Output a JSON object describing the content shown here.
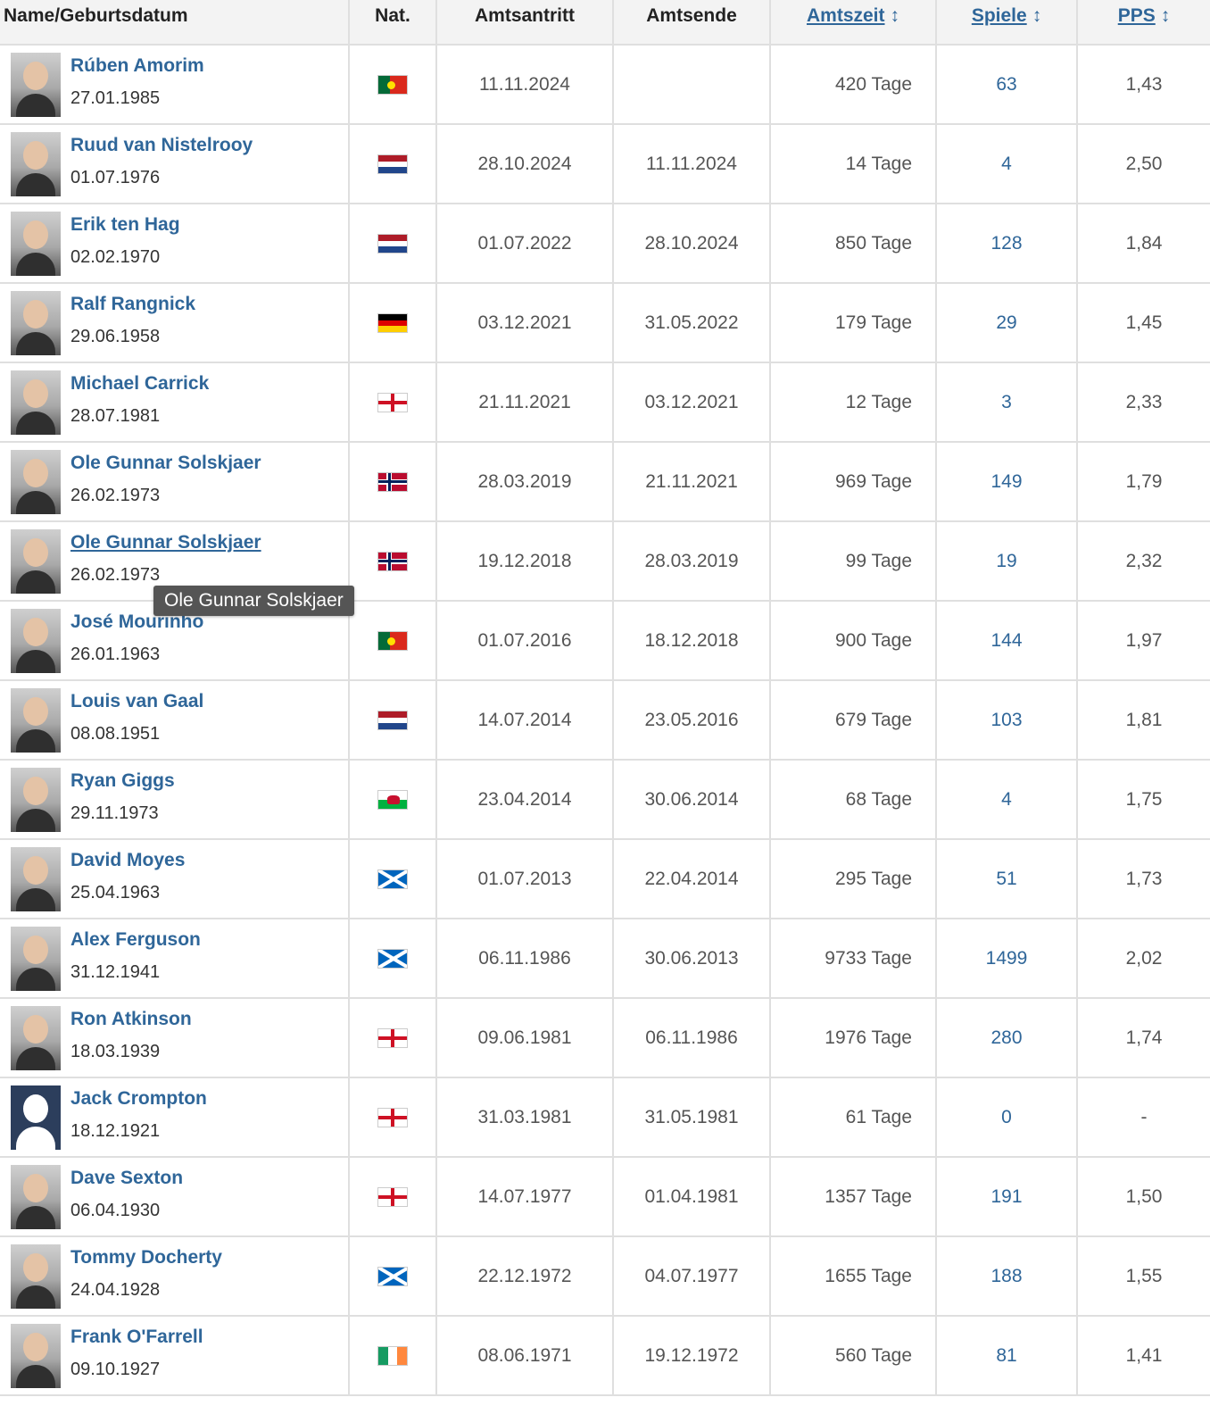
{
  "header": {
    "col_name": "Name/Geburtsdatum",
    "col_nat": "Nat.",
    "col_start": "Amtsantritt",
    "col_end": "Amtsende",
    "col_tenure": "Amtszeit",
    "col_matches": "Spiele",
    "col_pps": "PPS",
    "sort_icon": "↕"
  },
  "tooltip": "Ole Gunnar Solskjaer",
  "rows": [
    {
      "name": "Rúben Amorim",
      "dob": "27.01.1985",
      "nat": "portugal",
      "start": "11.11.2024",
      "end": "",
      "tenure": "420 Tage",
      "matches": "63",
      "pps": "1,43"
    },
    {
      "name": "Ruud van Nistelrooy",
      "dob": "01.07.1976",
      "nat": "netherlands",
      "start": "28.10.2024",
      "end": "11.11.2024",
      "tenure": "14 Tage",
      "matches": "4",
      "pps": "2,50"
    },
    {
      "name": "Erik ten Hag",
      "dob": "02.02.1970",
      "nat": "netherlands",
      "start": "01.07.2022",
      "end": "28.10.2024",
      "tenure": "850 Tage",
      "matches": "128",
      "pps": "1,84"
    },
    {
      "name": "Ralf Rangnick",
      "dob": "29.06.1958",
      "nat": "germany",
      "start": "03.12.2021",
      "end": "31.05.2022",
      "tenure": "179 Tage",
      "matches": "29",
      "pps": "1,45"
    },
    {
      "name": "Michael Carrick",
      "dob": "28.07.1981",
      "nat": "england",
      "start": "21.11.2021",
      "end": "03.12.2021",
      "tenure": "12 Tage",
      "matches": "3",
      "pps": "2,33"
    },
    {
      "name": "Ole Gunnar Solskjaer",
      "dob": "26.02.1973",
      "nat": "norway",
      "start": "28.03.2019",
      "end": "21.11.2021",
      "tenure": "969 Tage",
      "matches": "149",
      "pps": "1,79"
    },
    {
      "name": "Ole Gunnar Solskjaer",
      "dob": "26.02.1973",
      "nat": "norway",
      "start": "19.12.2018",
      "end": "28.03.2019",
      "tenure": "99 Tage",
      "matches": "19",
      "pps": "2,32"
    },
    {
      "name": "José Mourinho",
      "dob": "26.01.1963",
      "nat": "portugal",
      "start": "01.07.2016",
      "end": "18.12.2018",
      "tenure": "900 Tage",
      "matches": "144",
      "pps": "1,97"
    },
    {
      "name": "Louis van Gaal",
      "dob": "08.08.1951",
      "nat": "netherlands",
      "start": "14.07.2014",
      "end": "23.05.2016",
      "tenure": "679 Tage",
      "matches": "103",
      "pps": "1,81"
    },
    {
      "name": "Ryan Giggs",
      "dob": "29.11.1973",
      "nat": "wales",
      "start": "23.04.2014",
      "end": "30.06.2014",
      "tenure": "68 Tage",
      "matches": "4",
      "pps": "1,75"
    },
    {
      "name": "David Moyes",
      "dob": "25.04.1963",
      "nat": "scotland",
      "start": "01.07.2013",
      "end": "22.04.2014",
      "tenure": "295 Tage",
      "matches": "51",
      "pps": "1,73"
    },
    {
      "name": "Alex Ferguson",
      "dob": "31.12.1941",
      "nat": "scotland",
      "start": "06.11.1986",
      "end": "30.06.2013",
      "tenure": "9733 Tage",
      "matches": "1499",
      "pps": "2,02"
    },
    {
      "name": "Ron Atkinson",
      "dob": "18.03.1939",
      "nat": "england",
      "start": "09.06.1981",
      "end": "06.11.1986",
      "tenure": "1976 Tage",
      "matches": "280",
      "pps": "1,74"
    },
    {
      "name": "Jack Crompton",
      "dob": "18.12.1921",
      "nat": "england",
      "start": "31.03.1981",
      "end": "31.05.1981",
      "tenure": "61 Tage",
      "matches": "0",
      "pps": "-"
    },
    {
      "name": "Dave Sexton",
      "dob": "06.04.1930",
      "nat": "england",
      "start": "14.07.1977",
      "end": "01.04.1981",
      "tenure": "1357 Tage",
      "matches": "191",
      "pps": "1,50"
    },
    {
      "name": "Tommy Docherty",
      "dob": "24.04.1928",
      "nat": "scotland",
      "start": "22.12.1972",
      "end": "04.07.1977",
      "tenure": "1655 Tage",
      "matches": "188",
      "pps": "1,55"
    },
    {
      "name": "Frank O'Farrell",
      "dob": "09.10.1927",
      "nat": "ireland",
      "start": "08.06.1971",
      "end": "19.12.1972",
      "tenure": "560 Tage",
      "matches": "81",
      "pps": "1,41"
    }
  ]
}
